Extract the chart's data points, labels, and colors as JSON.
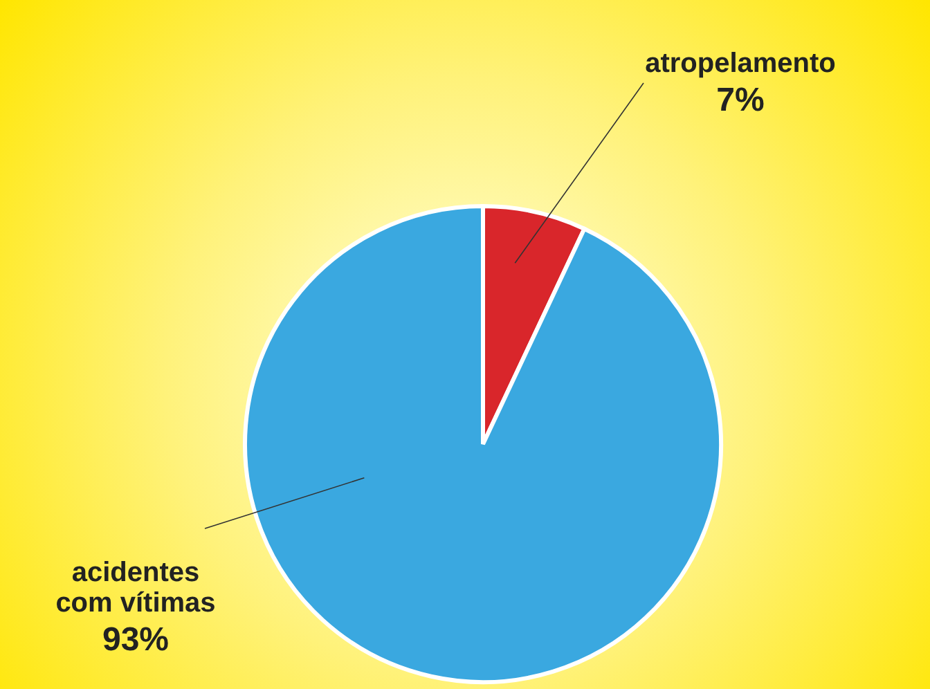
{
  "chart_data": {
    "type": "pie",
    "categories": [
      "atropelamento",
      "acidentes com vítimas"
    ],
    "values": [
      7,
      93
    ],
    "colors": [
      "#d9262b",
      "#3aa8e0"
    ],
    "value_labels": [
      "7%",
      "93%"
    ]
  }
}
